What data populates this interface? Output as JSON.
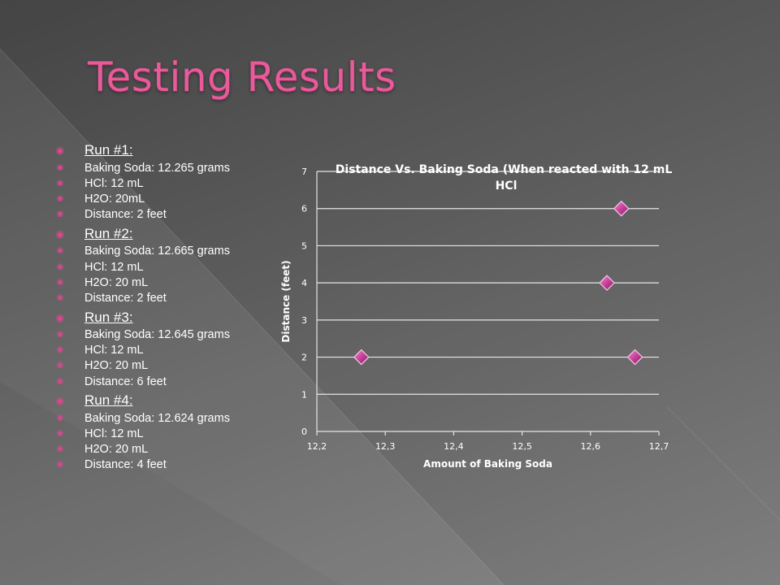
{
  "slide": {
    "title": "Testing Results",
    "accent_color": "#e85a9a",
    "bullet_icon": "circle-dot-bullet-icon"
  },
  "runs": [
    {
      "heading": "Run #1:",
      "items": [
        "Baking Soda: 12.265 grams",
        "HCl: 12 mL",
        "H2O: 20mL",
        "Distance: 2 feet"
      ]
    },
    {
      "heading": "Run #2:",
      "items": [
        "Baking Soda: 12.665 grams",
        "HCl: 12 mL",
        "H2O: 20 mL",
        "Distance: 2 feet"
      ]
    },
    {
      "heading": "Run #3:",
      "items": [
        "Baking Soda: 12.645 grams",
        "HCl: 12 mL",
        "H2O: 20 mL",
        "Distance: 6 feet"
      ]
    },
    {
      "heading": "Run #4:",
      "items": [
        "Baking Soda: 12.624 grams",
        "HCl: 12 mL",
        "H2O: 20 mL",
        "Distance: 4 feet"
      ]
    }
  ],
  "chart_data": {
    "type": "scatter",
    "title_line1": "Distance Vs. Baking Soda (When reacted with 12 mL",
    "title_line2": "HCl",
    "xlabel": "Amount of Baking Soda",
    "ylabel": "Distance (feet)",
    "xlim": [
      12.2,
      12.7
    ],
    "ylim": [
      0,
      7
    ],
    "x_ticks": [
      "12,2",
      "12,3",
      "12,4",
      "12,5",
      "12,6",
      "12,7"
    ],
    "y_ticks": [
      "0",
      "1",
      "2",
      "3",
      "4",
      "5",
      "6",
      "7"
    ],
    "grid": "horizontal",
    "legend": "none",
    "marker": "diamond",
    "marker_color": "#c8409a",
    "points": [
      {
        "x": 12.265,
        "y": 2
      },
      {
        "x": 12.665,
        "y": 2
      },
      {
        "x": 12.645,
        "y": 6
      },
      {
        "x": 12.624,
        "y": 4
      }
    ]
  }
}
